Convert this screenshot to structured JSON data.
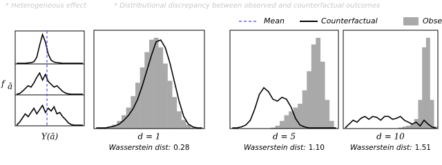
{
  "headers": [
    "* Heterogeneous effect",
    "* Distributional discrepancy between observed and counterfactual outcomes"
  ],
  "legend": {
    "mean": "Mean",
    "counterfactual": "Counterfactual",
    "observed": "Observed"
  },
  "left_panel": {
    "ylabel": "f",
    "ylabel_sub": "ā",
    "xlabel": "Y(ā)",
    "curves": [
      [
        0,
        0,
        0,
        0,
        1,
        2,
        5,
        20,
        60,
        95,
        70,
        30,
        10,
        4,
        2,
        1,
        0,
        0,
        0,
        0,
        0,
        0,
        0,
        0
      ],
      [
        0,
        2,
        10,
        20,
        30,
        25,
        40,
        60,
        75,
        50,
        70,
        45,
        35,
        25,
        30,
        20,
        10,
        4,
        1,
        0,
        0,
        0,
        0,
        0
      ],
      [
        0,
        10,
        25,
        40,
        30,
        45,
        60,
        40,
        55,
        70,
        45,
        60,
        50,
        65,
        40,
        45,
        30,
        20,
        8,
        2,
        0,
        0,
        0,
        0
      ]
    ]
  },
  "panels": [
    {
      "label": "d = 1",
      "metric": "Wasserstein dist:",
      "value": "0.28",
      "observed": [
        0,
        0,
        1,
        2,
        4,
        8,
        14,
        22,
        34,
        48,
        64,
        80,
        93,
        95,
        85,
        68,
        50,
        33,
        18,
        9,
        4,
        1,
        0,
        0
      ],
      "counterfactual": [
        0,
        0,
        0,
        1,
        2,
        4,
        8,
        13,
        20,
        30,
        44,
        60,
        76,
        90,
        92,
        84,
        68,
        48,
        28,
        12,
        4,
        1,
        0,
        0
      ]
    },
    {
      "label": "d = 5",
      "metric": "Wasserstein dist:",
      "value": "1.10",
      "observed": [
        0,
        0,
        0,
        0,
        0,
        0,
        0,
        0,
        0,
        1,
        3,
        8,
        14,
        18,
        22,
        26,
        40,
        60,
        88,
        95,
        70,
        30,
        8,
        0
      ],
      "counterfactual": [
        0,
        0,
        1,
        3,
        8,
        20,
        35,
        42,
        38,
        30,
        28,
        32,
        30,
        22,
        10,
        3,
        1,
        0,
        0,
        0,
        0,
        0,
        0,
        0
      ]
    },
    {
      "label": "d = 10",
      "metric": "Wasserstein dist:",
      "value": "1.51",
      "observed": [
        0,
        0,
        0,
        0,
        0,
        0,
        0,
        0,
        0,
        0,
        0,
        0,
        0,
        0,
        1,
        2,
        3,
        5,
        10,
        30,
        85,
        95,
        30,
        2
      ],
      "counterfactual": [
        0,
        4,
        8,
        6,
        10,
        12,
        9,
        12,
        11,
        8,
        12,
        12,
        9,
        10,
        12,
        8,
        6,
        4,
        6,
        2,
        8,
        4,
        1,
        0
      ]
    }
  ]
}
